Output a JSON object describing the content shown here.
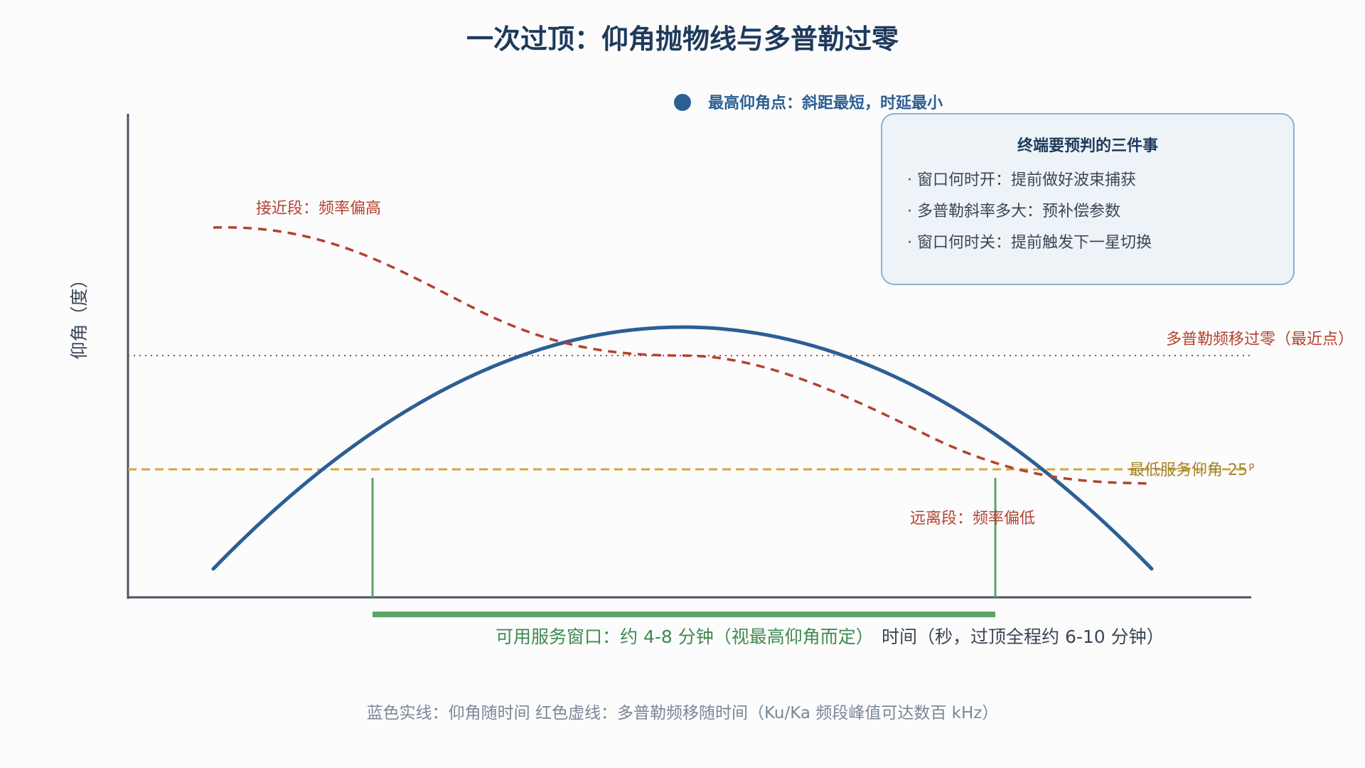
{
  "title": "一次过顶：仰角抛物线与多普勒过零",
  "peak_label": "最高仰角点：斜距最短，时延最小",
  "ylabel": "仰角（度）",
  "xlabel": "时间（秒，过顶全程约 6-10 分钟）",
  "info_box": {
    "title": "终端要预判的三件事",
    "items": [
      "· 窗口何时开：提前做好波束捕获",
      "· 多普勒斜率多大：预补偿参数",
      "· 窗口何时关：提前触发下一星切换"
    ]
  },
  "annotations": {
    "approach": "接近段：频率偏高",
    "recede": "远离段：频率偏低",
    "doppler_zero": "多普勒频移过零（最近点）",
    "min_elevation": "最低服务仰角 25°",
    "service_window": "可用服务窗口：约 4-8 分钟（视最高仰角而定）"
  },
  "caption": "蓝色实线：仰角随时间    红色虚线：多普勒频移随时间（Ku/Ka 频段峰值可达数百 kHz）",
  "colors": {
    "elevation": "#2c5f93",
    "doppler": "#b5412e",
    "min_elevation": "#d4a63a",
    "window": "#5aa467",
    "axis": "#4a5562",
    "box_fill": "#eef3f8",
    "box_stroke": "#8fb0cc"
  }
}
